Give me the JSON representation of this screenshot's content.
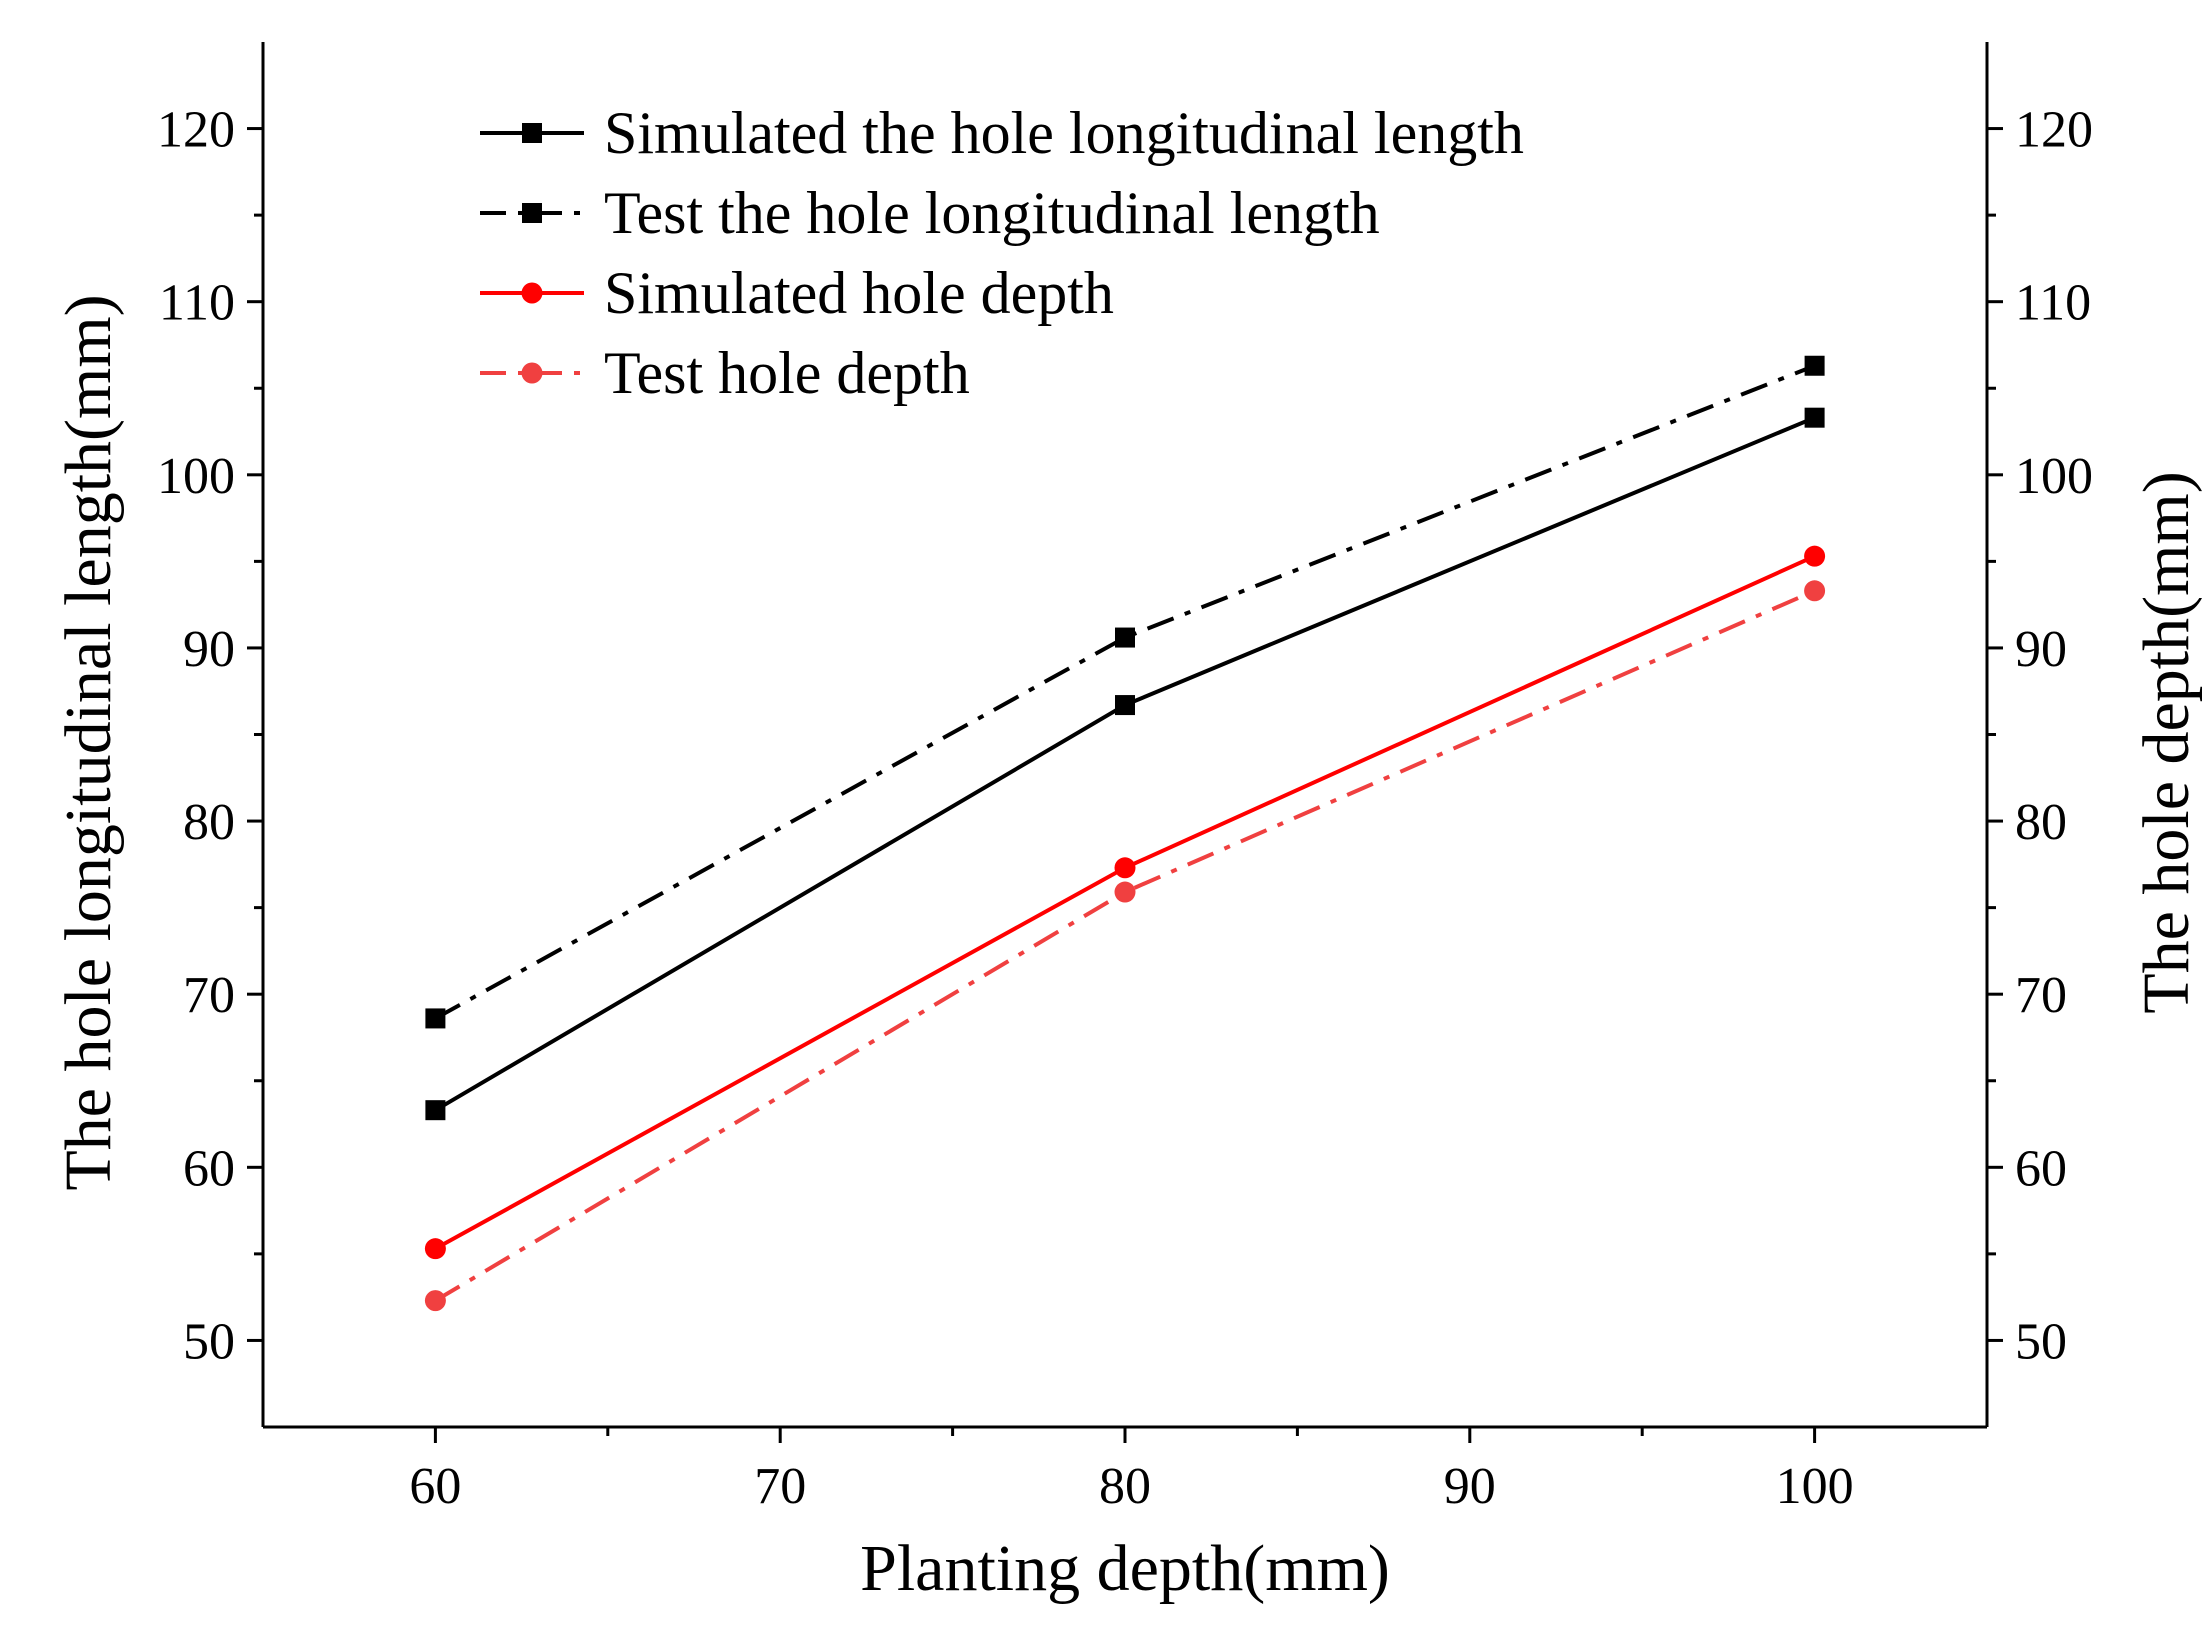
{
  "chart_data": {
    "type": "line",
    "title": "",
    "xlabel": "Planting depth(mm)",
    "ylabel_left": "The hole longitudinal length(mm)",
    "ylabel_right": "The hole depth(mm)",
    "xlim": [
      55,
      105
    ],
    "ylim": [
      45,
      125
    ],
    "x_ticks": [
      60,
      70,
      80,
      90,
      100
    ],
    "x_ticks_labels": [
      "60",
      "70",
      "80",
      "90",
      "100"
    ],
    "y_ticks": [
      50,
      60,
      70,
      80,
      90,
      100,
      110,
      120
    ],
    "y_ticks_labels": [
      "50",
      "60",
      "70",
      "80",
      "90",
      "100",
      "110",
      "120"
    ],
    "grid": false,
    "legend_position": "top-left",
    "x": [
      60,
      80,
      100
    ],
    "series": [
      {
        "name": "Simulated the hole longitudinal length",
        "values": [
          63.3,
          86.7,
          103.3
        ],
        "color": "#000000",
        "dash": "solid",
        "marker": "square"
      },
      {
        "name": "Test the hole longitudinal length",
        "values": [
          68.6,
          90.6,
          106.3
        ],
        "color": "#000000",
        "dash": "dashdot",
        "marker": "square"
      },
      {
        "name": "Simulated hole depth",
        "values": [
          55.3,
          77.3,
          95.3
        ],
        "color": "#ff0000",
        "dash": "solid",
        "marker": "circle"
      },
      {
        "name": "Test hole depth",
        "values": [
          52.3,
          75.9,
          93.3
        ],
        "color": "#f04040",
        "dash": "dashdot",
        "marker": "circle"
      }
    ]
  }
}
